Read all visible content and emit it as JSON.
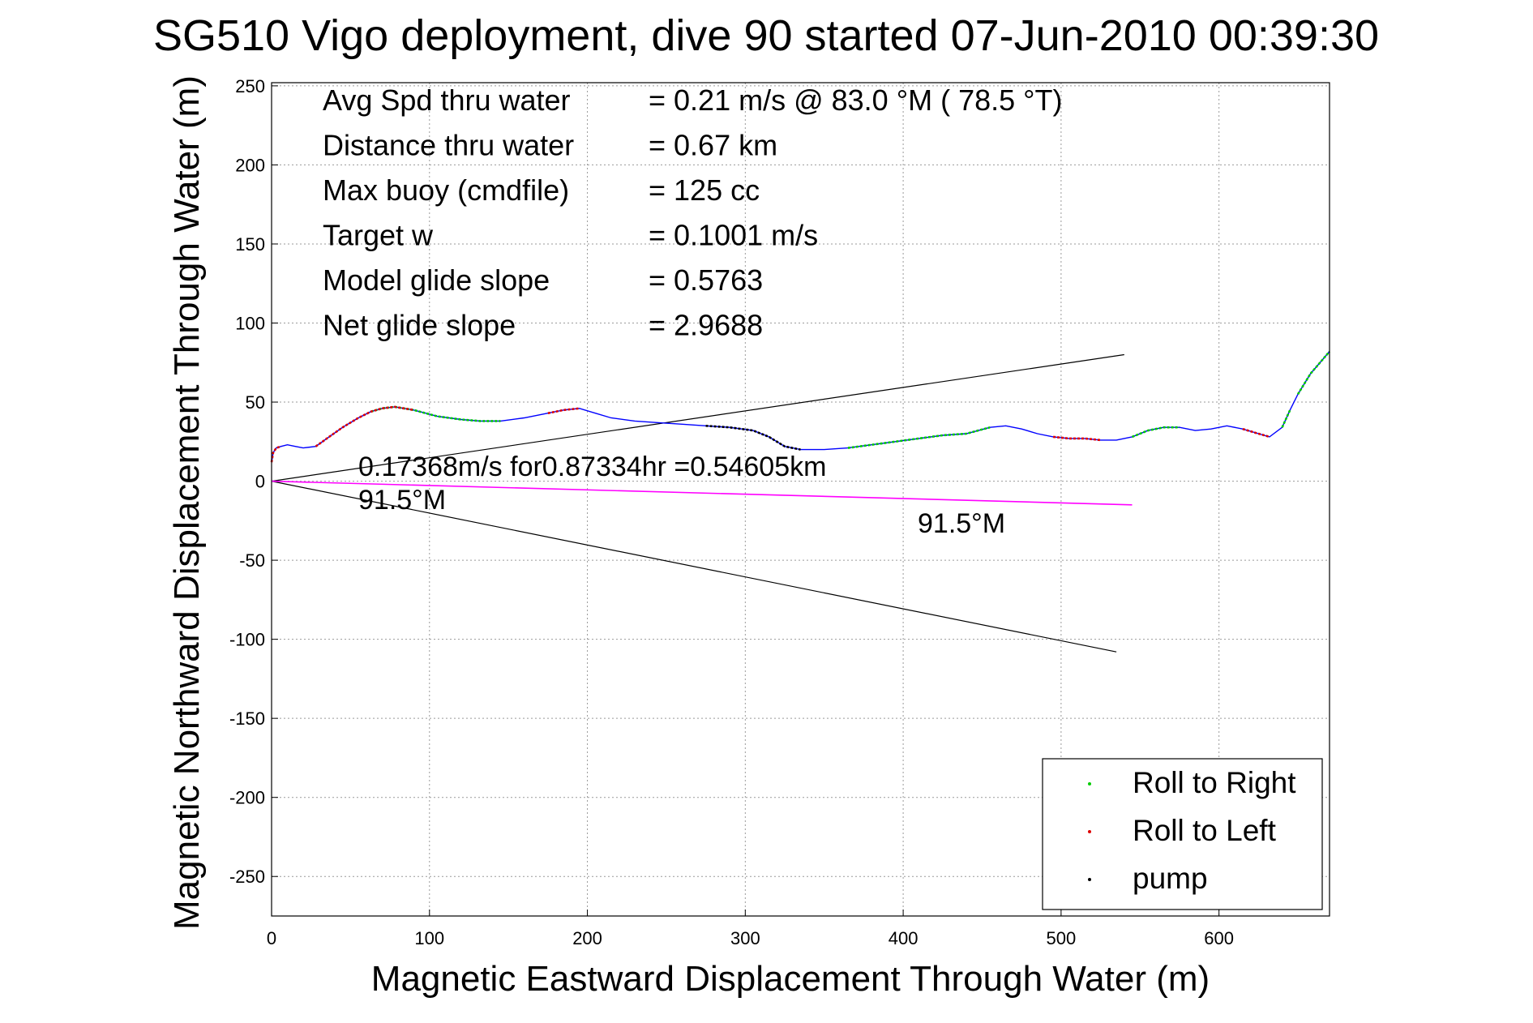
{
  "chart_data": {
    "type": "line",
    "title": "SG510 Vigo deployment, dive 90 started 07-Jun-2010 00:39:30",
    "xlabel": "Magnetic Eastward Displacement Through Water (m)",
    "ylabel": "Magnetic Northward Displacement Through Water (m)",
    "xlim": [
      0,
      670
    ],
    "ylim": [
      -275,
      252
    ],
    "x_ticks": [
      0,
      100,
      200,
      300,
      400,
      500,
      600
    ],
    "y_ticks": [
      250,
      200,
      150,
      100,
      50,
      0,
      -50,
      -100,
      -150,
      -200,
      -250
    ],
    "grid": true,
    "legend_placement": "bottom-right",
    "colors": {
      "track": "#0000ff",
      "roll_right": "#00cc00",
      "roll_left": "#dd0000",
      "pump": "#000000",
      "drift": "#ff00ff",
      "cone": "#000000"
    },
    "stats": [
      {
        "label": "Avg Spd thru water",
        "value": "=  0.21 m/s @  83.0 °M ( 78.5 °T)"
      },
      {
        "label": "Distance thru water",
        "value": "=  0.67 km"
      },
      {
        "label": "Max buoy (cmdfile)",
        "value": "= 125 cc"
      },
      {
        "label": "Target w",
        "value": "= 0.1001 m/s"
      },
      {
        "label": "Model glide slope",
        "value": "= 0.5763"
      },
      {
        "label": "Net glide slope",
        "value": "= 2.9688"
      }
    ],
    "annotations": {
      "drift": "0.17368m/s for0.87334hr =0.54605km",
      "heading_near": "91.5°M",
      "heading_far": "91.5°M"
    },
    "legend": [
      {
        "label": "Roll to Right",
        "color": "#00cc00"
      },
      {
        "label": "Roll to Left",
        "color": "#dd0000"
      },
      {
        "label": "pump",
        "color": "#000000"
      }
    ],
    "track": {
      "x": [
        0,
        1,
        3,
        6,
        10,
        15,
        20,
        28,
        35,
        45,
        55,
        63,
        70,
        78,
        90,
        105,
        120,
        132,
        145,
        160,
        175,
        185,
        195,
        205,
        215,
        230,
        245,
        260,
        275,
        290,
        305,
        315,
        325,
        335,
        350,
        365,
        380,
        395,
        410,
        425,
        440,
        455,
        465,
        475,
        485,
        495,
        505,
        515,
        525,
        535,
        545,
        555,
        565,
        575,
        585,
        595,
        605,
        615,
        625,
        632,
        640,
        645,
        650,
        658,
        664,
        670
      ],
      "y": [
        12,
        18,
        21,
        22,
        23,
        22,
        21,
        22,
        27,
        34,
        40,
        44,
        46,
        47,
        45,
        41,
        39,
        38,
        38,
        40,
        43,
        45,
        46,
        43,
        40,
        38,
        37,
        36,
        35,
        34,
        32,
        28,
        22,
        20,
        20,
        21,
        23,
        25,
        27,
        29,
        30,
        34,
        35,
        33,
        30,
        28,
        27,
        27,
        26,
        26,
        28,
        32,
        34,
        34,
        32,
        33,
        35,
        33,
        30,
        28,
        34,
        45,
        55,
        68,
        75,
        82
      ]
    },
    "roll_right_segments": [
      [
        11,
        18
      ],
      [
        35,
        41
      ],
      [
        50,
        53
      ],
      [
        60,
        61
      ],
      [
        62,
        65
      ]
    ],
    "roll_left_segments": [
      [
        0,
        3
      ],
      [
        7,
        14
      ],
      [
        20,
        22
      ],
      [
        45,
        48
      ],
      [
        57,
        59
      ]
    ],
    "pump_segments": [
      [
        28,
        33
      ]
    ],
    "drift_line": {
      "x": [
        0,
        545
      ],
      "y": [
        0,
        -15
      ]
    },
    "cone_lines": [
      {
        "x": [
          0,
          540
        ],
        "y": [
          0,
          80
        ]
      },
      {
        "x": [
          0,
          535
        ],
        "y": [
          0,
          -108
        ]
      }
    ]
  }
}
